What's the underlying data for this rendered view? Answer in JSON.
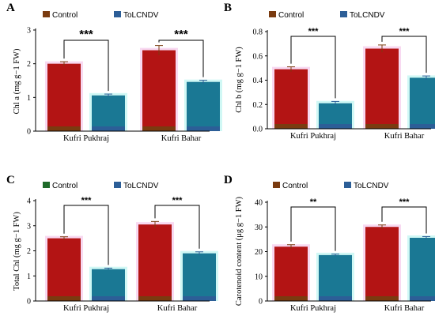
{
  "colors": {
    "control": "#b31414",
    "control_dark": "#7a3b10",
    "tolcndv": "#1a7894",
    "tolcndv_dark": "#2c5e97",
    "control_glow": "#f2b9e6",
    "tolcndv_glow": "#a9f2ec",
    "axis": "#000000"
  },
  "chart_data": [
    {
      "type": "bar",
      "panel": "A",
      "ylabel": "Chl a (mg g−1 FW)",
      "ylim": [
        0,
        3
      ],
      "yticks": [
        "0",
        "1",
        "2",
        "3"
      ],
      "categories": [
        "Kufri Pukhraj",
        "Kufri Bahar"
      ],
      "legend": [
        "Control",
        "ToLCNDV"
      ],
      "legend_marker_colors": [
        "#7a3b10",
        "#2c5e97"
      ],
      "series": [
        {
          "name": "Control",
          "values": [
            2.0,
            2.4
          ],
          "errors": [
            0.06,
            0.14
          ]
        },
        {
          "name": "ToLCNDV",
          "values": [
            1.06,
            1.46
          ],
          "errors": [
            0.04,
            0.05
          ]
        }
      ],
      "significance": [
        "***",
        "***"
      ],
      "grid": false
    },
    {
      "type": "bar",
      "panel": "B",
      "ylabel": "Chl b (mg g−1 FW)",
      "ylim": [
        0,
        0.8
      ],
      "yticks": [
        "0.0",
        "0.2",
        "0.4",
        "0.6",
        "0.8"
      ],
      "categories": [
        "Kufri Pukhraj",
        "Kufri Bahar"
      ],
      "legend": [
        "Control",
        "ToLCNDV"
      ],
      "legend_marker_colors": [
        "#7a3b10",
        "#2c5e97"
      ],
      "series": [
        {
          "name": "Control",
          "values": [
            0.49,
            0.66
          ],
          "errors": [
            0.02,
            0.03
          ]
        },
        {
          "name": "ToLCNDV",
          "values": [
            0.21,
            0.42
          ],
          "errors": [
            0.015,
            0.015
          ]
        }
      ],
      "significance": [
        "***",
        "***"
      ],
      "grid": false
    },
    {
      "type": "bar",
      "panel": "C",
      "ylabel": "Total Chl (mg g−1 FW)",
      "ylim": [
        0,
        4
      ],
      "yticks": [
        "0",
        "1",
        "2",
        "3",
        "4"
      ],
      "categories": [
        "Kufri Pukhraj",
        "Kufri Bahar"
      ],
      "legend": [
        "Control",
        "ToLCNDV"
      ],
      "legend_marker_colors": [
        "#1f6b2a",
        "#2c5e97"
      ],
      "series": [
        {
          "name": "Control",
          "values": [
            2.5,
            3.05
          ],
          "errors": [
            0.06,
            0.12
          ]
        },
        {
          "name": "ToLCNDV",
          "values": [
            1.27,
            1.9
          ],
          "errors": [
            0.04,
            0.06
          ]
        }
      ],
      "significance": [
        "***",
        "***"
      ],
      "grid": false
    },
    {
      "type": "bar",
      "panel": "D",
      "ylabel": "Carotenoid content (μg g−1 FW)",
      "ylim": [
        0,
        40
      ],
      "yticks": [
        "0",
        "10",
        "20",
        "30",
        "40"
      ],
      "categories": [
        "Kufri Pukhraj",
        "Kufri Bahar"
      ],
      "legend": [
        "Control",
        "ToLCNDV"
      ],
      "legend_marker_colors": [
        "#7a3b10",
        "#2c5e97"
      ],
      "series": [
        {
          "name": "Control",
          "values": [
            22.0,
            30.0
          ],
          "errors": [
            0.8,
            0.8
          ]
        },
        {
          "name": "ToLCNDV",
          "values": [
            18.6,
            25.6
          ],
          "errors": [
            0.4,
            0.5
          ]
        }
      ],
      "significance": [
        "**",
        "***"
      ],
      "grid": false
    }
  ]
}
